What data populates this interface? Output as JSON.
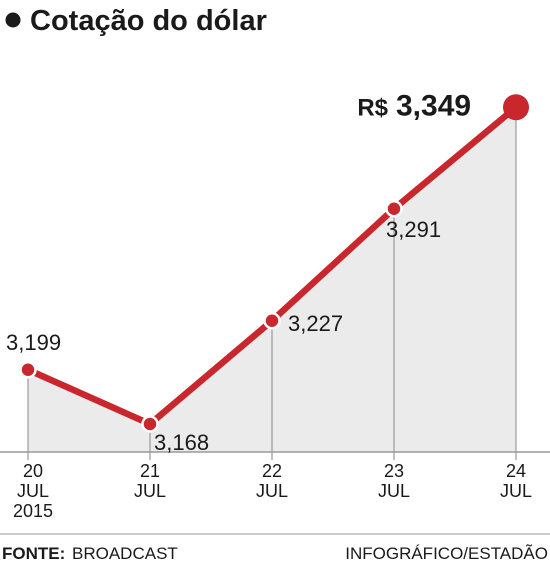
{
  "chart_data": {
    "type": "line",
    "title": "Cotação do dólar",
    "categories": [
      [
        "20",
        "JUL",
        "2015"
      ],
      [
        "21",
        "JUL"
      ],
      [
        "22",
        "JUL"
      ],
      [
        "23",
        "JUL"
      ],
      [
        "24",
        "JUL"
      ]
    ],
    "values": [
      3.199,
      3.168,
      3.227,
      3.291,
      3.349
    ],
    "value_labels": [
      "3,199",
      "3,168",
      "3,227",
      "3,291",
      "3,349"
    ],
    "last_value_prefix": "R$",
    "ylim": [
      3.14,
      3.36
    ],
    "grid": false,
    "line_color": "#c8282d",
    "area_color": "#ebebeb",
    "axis_color": "#999999"
  },
  "footer": {
    "source_label": "FONTE:",
    "source_value": "BROADCAST",
    "credit": "INFOGRÁFICO/ESTADÃO"
  }
}
